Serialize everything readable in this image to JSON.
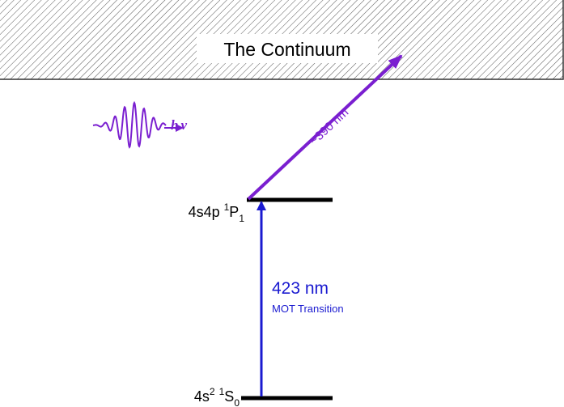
{
  "continuum": {
    "label": "The Continuum"
  },
  "photon": {
    "symbol_h": "h",
    "symbol_nu": "ν"
  },
  "transitions": [
    {
      "wavelength": "~390 nm"
    },
    {
      "wavelength": "423 nm",
      "note": "MOT Transition"
    }
  ],
  "levels": [
    {
      "config": "4s4p",
      "multiplicity": "1",
      "term": "P",
      "j": "1"
    },
    {
      "config": "4s",
      "config_exponent": "2",
      "multiplicity": "1",
      "term": "S",
      "j": "0"
    }
  ]
}
